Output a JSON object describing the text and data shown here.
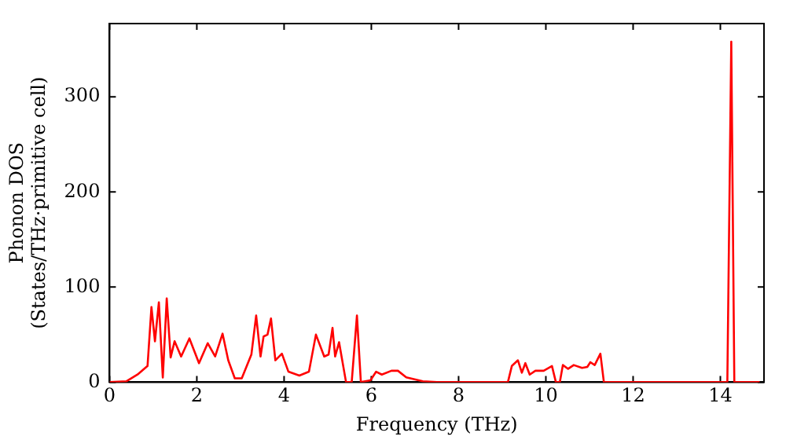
{
  "chart_data": {
    "type": "line",
    "xlabel": "Frequency (THz)",
    "ylabel": "Phonon DOS\n(States/THz·primitive cell)",
    "x": [
      0,
      0.39,
      0.64,
      0.87,
      0.96,
      1.04,
      1.13,
      1.22,
      1.31,
      1.4,
      1.49,
      1.64,
      1.83,
      2.05,
      2.25,
      2.42,
      2.59,
      2.72,
      2.87,
      3.03,
      3.25,
      3.36,
      3.46,
      3.53,
      3.62,
      3.7,
      3.8,
      3.95,
      4.1,
      4.35,
      4.57,
      4.73,
      4.92,
      5.02,
      5.11,
      5.17,
      5.26,
      5.42,
      5.55,
      5.67,
      5.76,
      5.98,
      6.11,
      6.24,
      6.46,
      6.61,
      6.8,
      7.18,
      7.5,
      9.13,
      9.22,
      9.36,
      9.45,
      9.53,
      9.63,
      9.76,
      9.95,
      10.14,
      10.23,
      10.32,
      10.39,
      10.51,
      10.64,
      10.83,
      10.95,
      11.02,
      11.12,
      11.25,
      11.33,
      14.16,
      14.25,
      14.32,
      14.9
    ],
    "series": [
      {
        "color": "#ff0000",
        "values": [
          0,
          1,
          8,
          17,
          79,
          43,
          84,
          5,
          88,
          26,
          43,
          27,
          46,
          20,
          41,
          27,
          51,
          23,
          4,
          4,
          29,
          70,
          27,
          48,
          50,
          67,
          23,
          30,
          11,
          7,
          11,
          50,
          27,
          29,
          57,
          27,
          42,
          0,
          0,
          70,
          0,
          2,
          11,
          8,
          12,
          12,
          5,
          1,
          0,
          0,
          17,
          23,
          10,
          20,
          8,
          12,
          12,
          17,
          0,
          0,
          18,
          14,
          18,
          15,
          16,
          21,
          18,
          30,
          0,
          0,
          358,
          0,
          0
        ]
      }
    ],
    "xlim": [
      0,
      15
    ],
    "ylim": [
      0,
      377
    ],
    "xticks": [
      0,
      2,
      4,
      6,
      8,
      10,
      12,
      14
    ],
    "yticks": [
      0,
      100,
      200,
      300
    ],
    "grid": false,
    "legend": false,
    "marker": "none",
    "line_style": "solid"
  }
}
